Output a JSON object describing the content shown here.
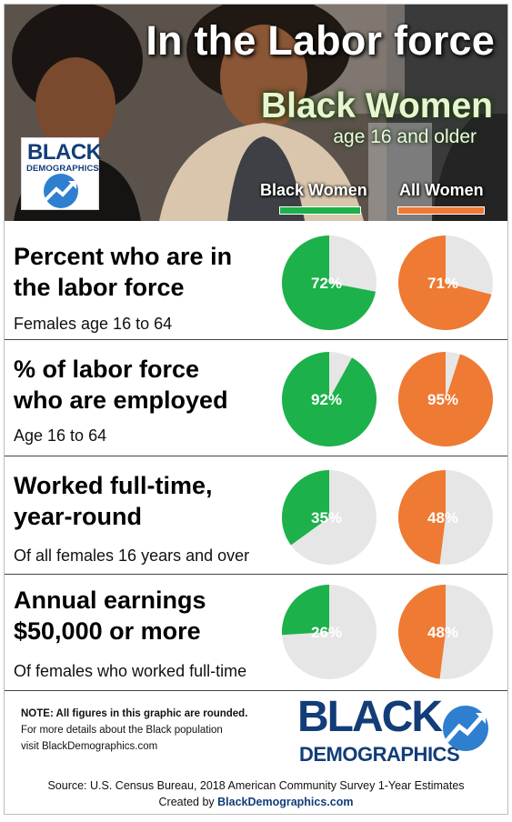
{
  "header": {
    "title": "In the Labor force",
    "subtitle": "Black Women",
    "subtitle2": "age 16 and older",
    "badge_line1": "BLACK",
    "badge_line2": "DEMOGRAPHICS"
  },
  "legend": [
    {
      "label": "Black Women",
      "color": "#1cb14a"
    },
    {
      "label": "All Women",
      "color": "#ee7a33"
    }
  ],
  "colors": {
    "black_women": "#1cb14a",
    "all_women": "#ee7a33",
    "remainder": "#e6e6e6"
  },
  "chart_data": {
    "type": "pie",
    "series_names": [
      "Black Women",
      "All Women"
    ],
    "panels": [
      {
        "title_line1": "Percent who are in",
        "title_line2": "the labor force",
        "subtitle": "Females age 16 to 64",
        "black_women": 72,
        "all_women": 71
      },
      {
        "title_line1": "% of labor force",
        "title_line2": "who are employed",
        "subtitle": "Age 16 to 64",
        "black_women": 92,
        "all_women": 95
      },
      {
        "title_line1": "Worked full-time,",
        "title_line2": "year-round",
        "subtitle": "Of all females 16 years and over",
        "black_women": 35,
        "all_women": 48
      },
      {
        "title_line1": "Annual earnings",
        "title_line2": "$50,000 or more",
        "subtitle": "Of females who worked full-time",
        "black_women": 26,
        "all_women": 48
      }
    ]
  },
  "footer": {
    "note_bold": "NOTE: All figures in this graphic are rounded.",
    "note_line2": "For more details about the Black population",
    "note_line3": "visit BlackDemographics.com",
    "logo_line1": "BLACK",
    "logo_line2": "DEMOGRAPHICS",
    "source": "Source:  U.S. Census Bureau, 2018 American Community  Survey 1-Year Estimates",
    "created_prefix": "Created by ",
    "created_site": "BlackDemographics.com"
  }
}
